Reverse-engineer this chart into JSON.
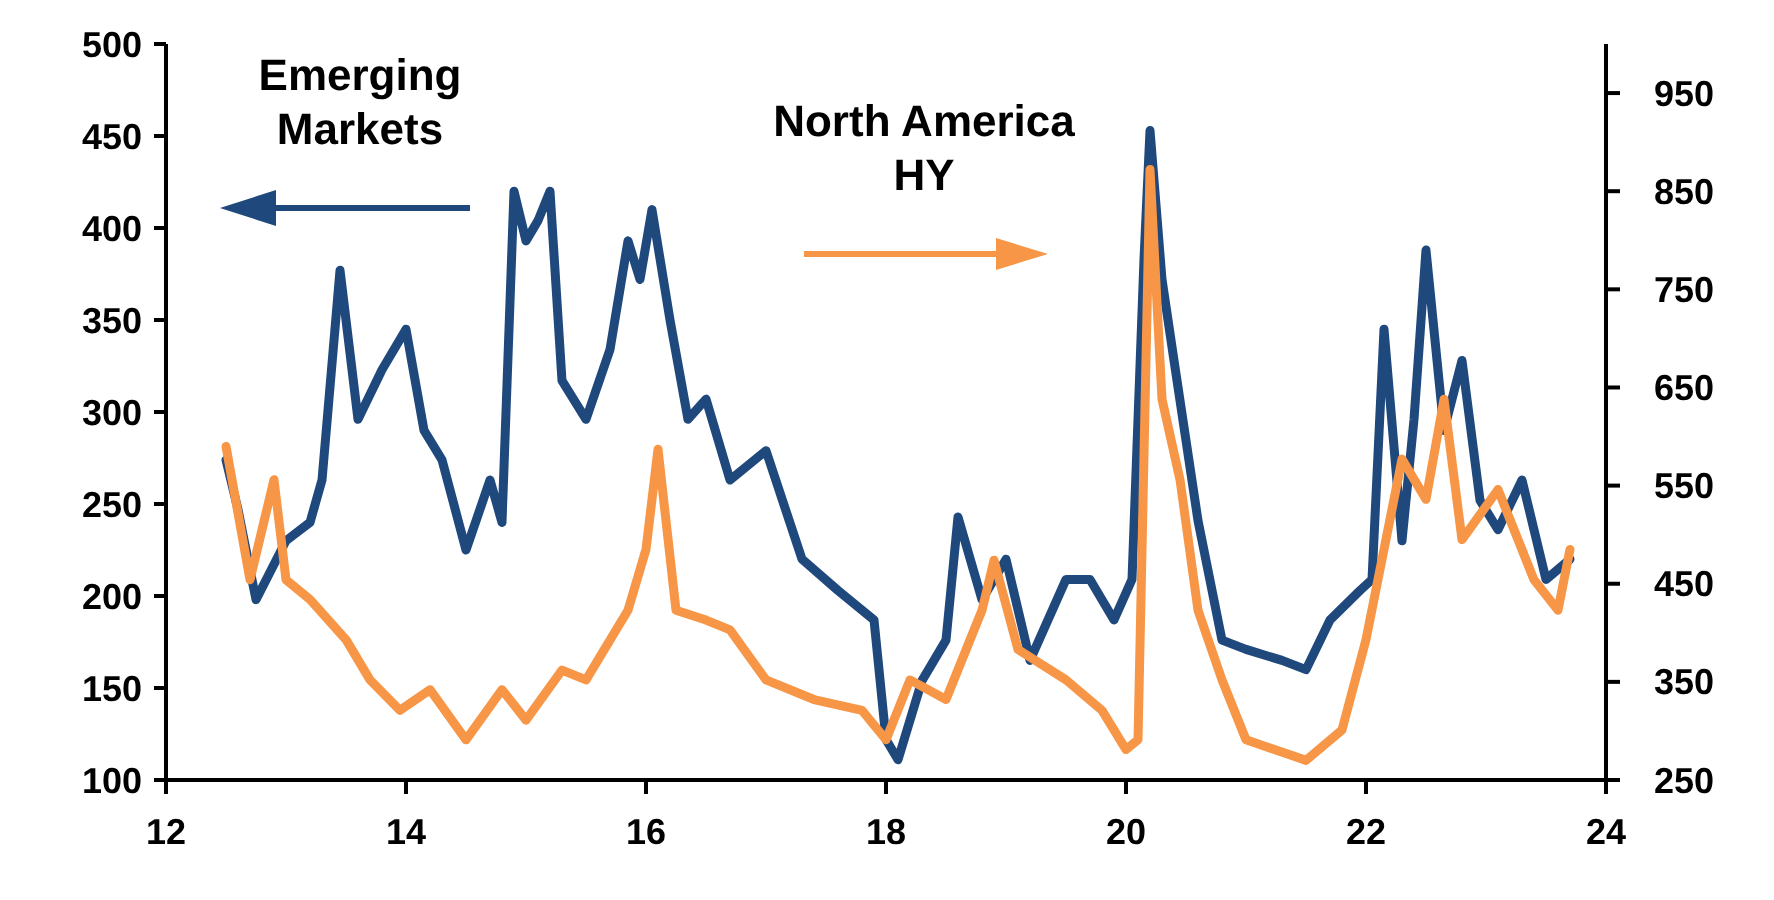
{
  "chart_data": {
    "type": "line",
    "xlim": [
      12,
      24
    ],
    "xticks": [
      12,
      14,
      16,
      18,
      20,
      22,
      24
    ],
    "ylim": [
      100,
      500
    ],
    "yticks": [
      100,
      150,
      200,
      250,
      300,
      350,
      400,
      450,
      500
    ],
    "y2lim": [
      250,
      1000
    ],
    "y2ticks": [
      250,
      350,
      450,
      550,
      650,
      750,
      850,
      950
    ],
    "series": [
      {
        "name": "Emerging Markets",
        "color": "#1f497d",
        "x": [
          12.5,
          12.6,
          12.75,
          13.0,
          13.2,
          13.3,
          13.45,
          13.6,
          13.8,
          14.0,
          14.15,
          14.3,
          14.5,
          14.7,
          14.8,
          14.9,
          15.0,
          15.1,
          15.2,
          15.3,
          15.5,
          15.7,
          15.85,
          15.95,
          16.05,
          16.2,
          16.35,
          16.5,
          16.7,
          17.0,
          17.3,
          17.6,
          17.9,
          18.0,
          18.1,
          18.3,
          18.5,
          18.6,
          18.8,
          19.0,
          19.2,
          19.5,
          19.7,
          19.9,
          20.05,
          20.15,
          20.2,
          20.3,
          20.4,
          20.6,
          20.8,
          21.0,
          21.3,
          21.5,
          21.7,
          21.95,
          22.05,
          22.15,
          22.3,
          22.4,
          22.5,
          22.65,
          22.8,
          22.95,
          23.1,
          23.3,
          23.5,
          23.7
        ],
        "values": [
          274,
          247,
          198,
          230,
          240,
          263,
          377,
          296,
          323,
          345,
          290,
          274,
          225,
          263,
          240,
          420,
          393,
          404,
          420,
          317,
          296,
          334,
          393,
          372,
          410,
          350,
          296,
          307,
          263,
          279,
          220,
          203,
          187,
          122,
          111,
          154,
          176,
          243,
          198,
          220,
          165,
          209,
          209,
          187,
          209,
          383,
          453,
          372,
          328,
          241,
          176,
          171,
          165,
          160,
          187,
          203,
          209,
          345,
          230,
          296,
          388,
          290,
          328,
          252,
          236,
          263,
          209,
          220
        ]
      },
      {
        "name": "North America HY",
        "color": "#f79646",
        "axis": "y2",
        "x": [
          12.5,
          12.7,
          12.9,
          13.0,
          13.2,
          13.5,
          13.7,
          13.95,
          14.2,
          14.5,
          14.8,
          15.0,
          15.3,
          15.5,
          15.85,
          16.0,
          16.1,
          16.25,
          16.5,
          16.7,
          17.0,
          17.4,
          17.8,
          18.0,
          18.2,
          18.5,
          18.8,
          18.9,
          19.1,
          19.5,
          19.8,
          20.0,
          20.1,
          20.2,
          20.3,
          20.45,
          20.6,
          20.8,
          21.0,
          21.5,
          21.8,
          22.0,
          22.3,
          22.5,
          22.65,
          22.8,
          23.1,
          23.4,
          23.6,
          23.7
        ],
        "values": [
          590,
          454,
          556,
          454,
          434,
          393,
          352,
          321,
          342,
          291,
          342,
          311,
          362,
          352,
          423,
          485,
          587,
          423,
          413,
          403,
          352,
          332,
          321,
          291,
          352,
          332,
          423,
          474,
          383,
          352,
          321,
          281,
          291,
          872,
          638,
          556,
          423,
          352,
          291,
          270,
          301,
          393,
          577,
          536,
          638,
          495,
          546,
          454,
          423,
          485
        ]
      }
    ]
  }
}
